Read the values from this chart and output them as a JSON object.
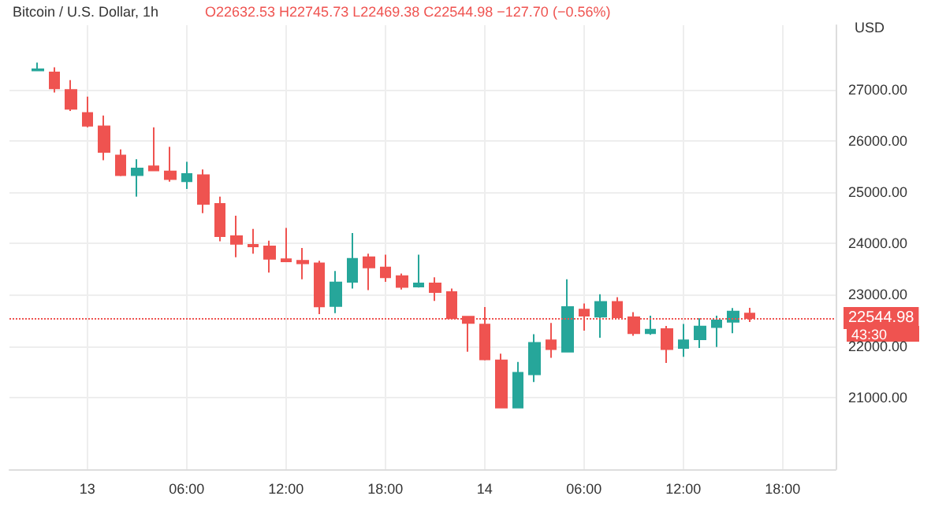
{
  "chart_data": {
    "type": "candlestick",
    "title": "Bitcoin / U.S. Dollar, 1h",
    "annotations": [
      "O22632.53 H22745.73 L22469.38 C22544.98 −127.70 (−0.56%)",
      "43:30"
    ],
    "ylabel": "USD",
    "x": [
      "--06-12T21:00",
      "--06-12T22:00",
      "--06-12T23:00",
      "--06-13T00:00",
      "--06-13T01:00",
      "--06-13T02:00",
      "--06-13T03:00",
      "--06-13T04:00",
      "--06-13T05:00",
      "--06-13T06:00",
      "--06-13T07:00",
      "--06-13T08:00",
      "--06-13T09:00",
      "--06-13T10:00",
      "--06-13T11:00",
      "--06-13T12:00",
      "--06-13T13:00",
      "--06-13T14:00",
      "--06-13T15:00",
      "--06-13T16:00",
      "--06-13T17:00",
      "--06-13T18:00",
      "--06-13T19:00",
      "--06-13T20:00",
      "--06-13T21:00",
      "--06-13T22:00",
      "--06-13T23:00",
      "--06-14T00:00",
      "--06-14T01:00",
      "--06-14T02:00",
      "--06-14T03:00",
      "--06-14T04:00",
      "--06-14T05:00",
      "--06-14T06:00",
      "--06-14T07:00",
      "--06-14T08:00",
      "--06-14T09:00",
      "--06-14T10:00",
      "--06-14T11:00",
      "--06-14T12:00",
      "--06-14T13:00",
      "--06-14T14:00",
      "--06-14T15:00",
      "--06-14T16:00"
    ],
    "ohlc": [
      [
        27370,
        27520,
        27360,
        27390
      ],
      [
        27330,
        27430,
        26940,
        27020
      ],
      [
        26990,
        27180,
        26580,
        26620
      ],
      [
        26540,
        26860,
        26260,
        26290
      ],
      [
        26280,
        26490,
        25620,
        25780
      ],
      [
        25710,
        25830,
        25310,
        25330
      ],
      [
        25330,
        25640,
        24910,
        25460
      ],
      [
        25500,
        26260,
        25410,
        25420
      ],
      [
        25400,
        25880,
        25200,
        25250
      ],
      [
        25210,
        25590,
        25060,
        25350
      ],
      [
        25330,
        25440,
        24590,
        24770
      ],
      [
        24770,
        24910,
        24040,
        24140
      ],
      [
        24140,
        24540,
        23730,
        23990
      ],
      [
        23970,
        24280,
        23800,
        23940
      ],
      [
        23940,
        24050,
        23430,
        23700
      ],
      [
        23690,
        24300,
        23650,
        23650
      ],
      [
        23660,
        23910,
        23300,
        23610
      ],
      [
        23610,
        23660,
        22620,
        22770
      ],
      [
        22780,
        23460,
        22640,
        23240
      ],
      [
        23250,
        24200,
        23120,
        23700
      ],
      [
        23730,
        23800,
        23090,
        23530
      ],
      [
        23530,
        23780,
        23250,
        23340
      ],
      [
        23360,
        23410,
        23100,
        23150
      ],
      [
        23160,
        23780,
        23140,
        23220
      ],
      [
        23220,
        23340,
        22880,
        23050
      ],
      [
        23050,
        23120,
        22520,
        22540
      ],
      [
        22570,
        22580,
        21890,
        22450
      ],
      [
        22420,
        22760,
        21720,
        21740
      ],
      [
        21720,
        21850,
        20790,
        20800
      ],
      [
        20800,
        21690,
        20790,
        21480
      ],
      [
        21450,
        22230,
        21300,
        22060
      ],
      [
        22110,
        22450,
        21770,
        21940
      ],
      [
        21890,
        23300,
        21890,
        22760
      ],
      [
        22710,
        22830,
        22300,
        22590
      ],
      [
        22570,
        23010,
        22160,
        22860
      ],
      [
        22860,
        22950,
        22540,
        22560
      ],
      [
        22560,
        22660,
        22200,
        22250
      ],
      [
        22250,
        22590,
        22220,
        22320
      ],
      [
        22330,
        22390,
        21670,
        21940
      ],
      [
        21960,
        22430,
        21790,
        22110
      ],
      [
        22130,
        22540,
        21960,
        22380
      ],
      [
        22370,
        22590,
        21980,
        22500
      ],
      [
        22470,
        22740,
        22250,
        22670
      ],
      [
        22632.53,
        22745.73,
        22469.38,
        22544.98
      ]
    ],
    "colors": [
      "#26a69a",
      "#ef5350",
      "#ef5350",
      "#ef5350",
      "#ef5350",
      "#ef5350",
      "#26a69a",
      "#ef5350",
      "#ef5350",
      "#26a69a",
      "#ef5350",
      "#ef5350",
      "#ef5350",
      "#ef5350",
      "#ef5350",
      "#ef5350",
      "#ef5350",
      "#ef5350",
      "#26a69a",
      "#26a69a",
      "#ef5350",
      "#ef5350",
      "#ef5350",
      "#26a69a",
      "#ef5350",
      "#ef5350",
      "#ef5350",
      "#ef5350",
      "#ef5350",
      "#26a69a",
      "#26a69a",
      "#ef5350",
      "#26a69a",
      "#ef5350",
      "#26a69a",
      "#ef5350",
      "#ef5350",
      "#26a69a",
      "#ef5350",
      "#26a69a",
      "#26a69a",
      "#26a69a",
      "#26a69a",
      "#ef5350"
    ],
    "xlim": [
      "--06-12T19:18",
      "--06-14T21:12"
    ],
    "xticks": [
      {
        "value": "--06-13T00:00",
        "label": "13"
      },
      {
        "value": "--06-13T06:00",
        "label": "06:00"
      },
      {
        "value": "--06-13T12:00",
        "label": "12:00"
      },
      {
        "value": "--06-13T18:00",
        "label": "18:00"
      },
      {
        "value": "--06-14T00:00",
        "label": "14"
      },
      {
        "value": "--06-14T06:00",
        "label": "06:00"
      },
      {
        "value": "--06-14T12:00",
        "label": "12:00"
      },
      {
        "value": "--06-14T18:00",
        "label": "18:00"
      }
    ],
    "ylim": [
      19600,
      28250
    ],
    "yticks": [
      {
        "value": 21000,
        "label": "21000.00"
      },
      {
        "value": 22000,
        "label": "22000.00"
      },
      {
        "value": 23000,
        "label": "23000.00"
      },
      {
        "value": 24000,
        "label": "24000.00"
      },
      {
        "value": 25000,
        "label": "25000.00"
      },
      {
        "value": 26000,
        "label": "26000.00"
      },
      {
        "value": 27000,
        "label": "27000.00"
      }
    ],
    "ref_lines": [
      {
        "axis": "y",
        "value": 22544.98,
        "label": "22544.98",
        "color": "#ef5350",
        "line_style": "dotted"
      }
    ],
    "grid": true
  }
}
